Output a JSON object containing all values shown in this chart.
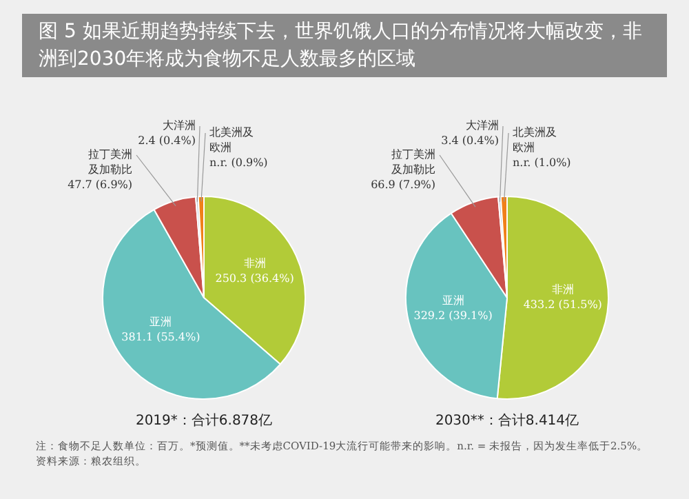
{
  "chart_data": [
    {
      "type": "pie",
      "title": "图 5  如果近期趋势持续下去，世界饥饿人口的分布情况将大幅改变，非洲到2030年将成为食物不足人数最多的区域",
      "xlabel": "2019*：合计6.878亿",
      "categories": [
        "非洲",
        "亚洲",
        "拉丁美洲及加勒比",
        "大洋洲",
        "北美洲及欧洲"
      ],
      "values": [
        36.4,
        55.4,
        6.9,
        0.4,
        0.9
      ],
      "value_labels": [
        "250.3 (36.4%)",
        "381.1 (55.4%)",
        "47.7 (6.9%)",
        "2.4 (0.4%)",
        "n.r. (0.9%)"
      ],
      "colors": [
        "#b2cb38",
        "#68c3bf",
        "#c9514c",
        "#c3c9d6",
        "#f08019"
      ],
      "legend": false
    },
    {
      "type": "pie",
      "xlabel": "2030**：合计8.414亿",
      "categories": [
        "非洲",
        "亚洲",
        "拉丁美洲及加勒比",
        "大洋洲",
        "北美洲及欧洲"
      ],
      "values": [
        51.5,
        39.1,
        7.9,
        0.4,
        1.0
      ],
      "value_labels": [
        "433.2 (51.5%)",
        "329.2 (39.1%)",
        "66.9 (7.9%)",
        "3.4 (0.4%)",
        "n.r. (1.0%)"
      ],
      "colors": [
        "#b2cb38",
        "#68c3bf",
        "#c9514c",
        "#c3c9d6",
        "#f08019"
      ],
      "legend": false,
      "annotations": [
        "注：食物不足人数单位：百万。*预测值。**未考虑COVID-19大流行可能带来的影响。n.r. = 未报告，因为发生率低于2.5%。",
        "资料来源：粮农组织。"
      ]
    }
  ]
}
